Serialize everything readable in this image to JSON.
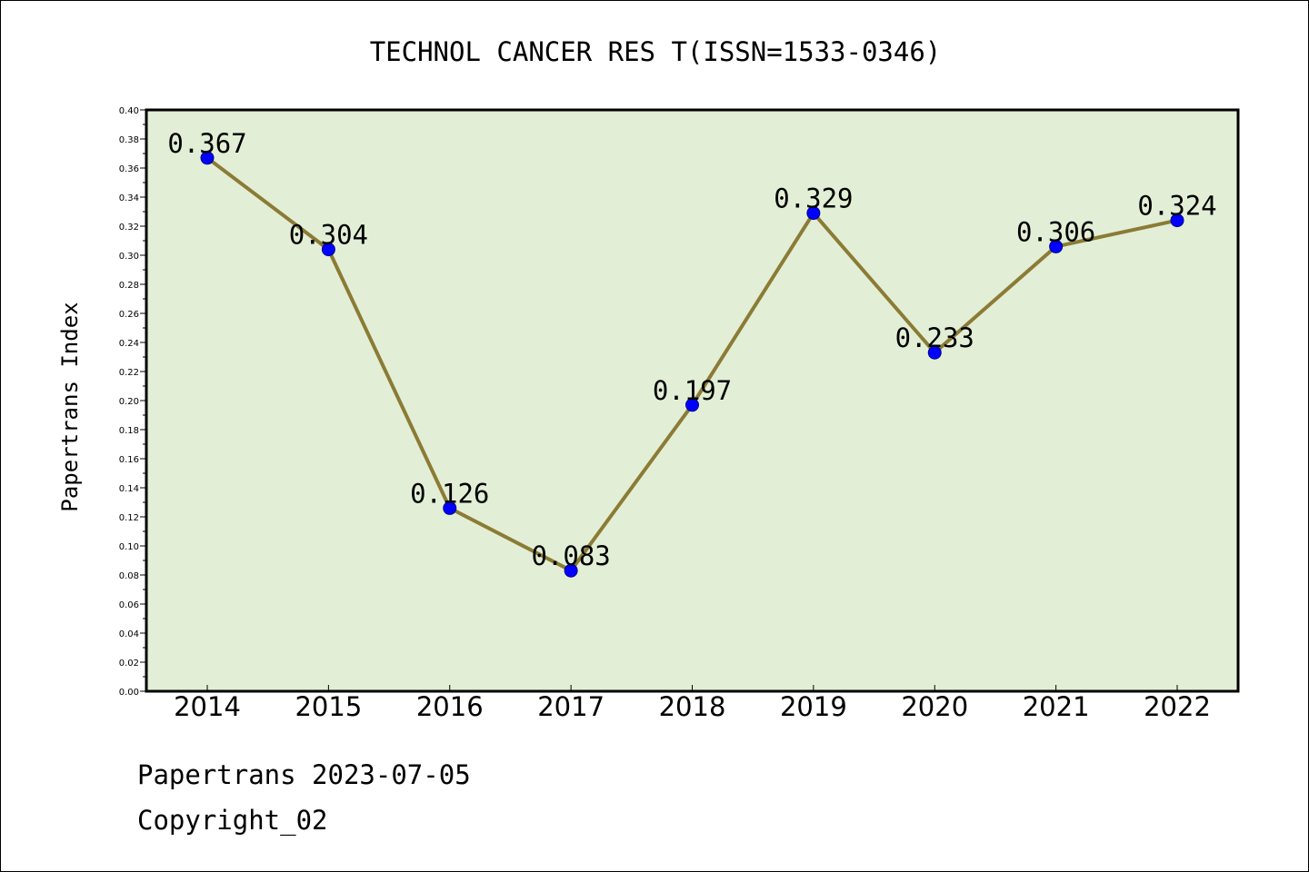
{
  "colors": {
    "plot_background": "#e2efd6",
    "line": "#8b7b35",
    "marker": "#0000ff",
    "marker_edge": "#00008b",
    "axis": "#000000"
  },
  "footer": {
    "date_line": "Papertrans 2023-07-05",
    "copyright_line": "Copyright_02"
  },
  "chart_data": {
    "type": "line",
    "title": "TECHNOL CANCER RES T(ISSN=1533-0346)",
    "xlabel": "",
    "ylabel": "Papertrans Index",
    "categories": [
      "2014",
      "2015",
      "2016",
      "2017",
      "2018",
      "2019",
      "2020",
      "2021",
      "2022"
    ],
    "series": [
      {
        "values": [
          0.367,
          0.304,
          0.126,
          0.083,
          0.197,
          0.329,
          0.233,
          0.306,
          0.324
        ],
        "data_labels": [
          "0.367",
          "0.304",
          "0.126",
          "0.083",
          "0.197",
          "0.329",
          "0.233",
          "0.306",
          "0.324"
        ]
      }
    ],
    "ylim": [
      0.0,
      0.4
    ],
    "yticks": [
      "0.00",
      "0.02",
      "0.04",
      "0.06",
      "0.08",
      "0.10",
      "0.12",
      "0.14",
      "0.16",
      "0.18",
      "0.20",
      "0.22",
      "0.24",
      "0.26",
      "0.28",
      "0.30",
      "0.32",
      "0.34",
      "0.36",
      "0.38",
      "0.40"
    ],
    "grid": false,
    "legend": "none"
  }
}
